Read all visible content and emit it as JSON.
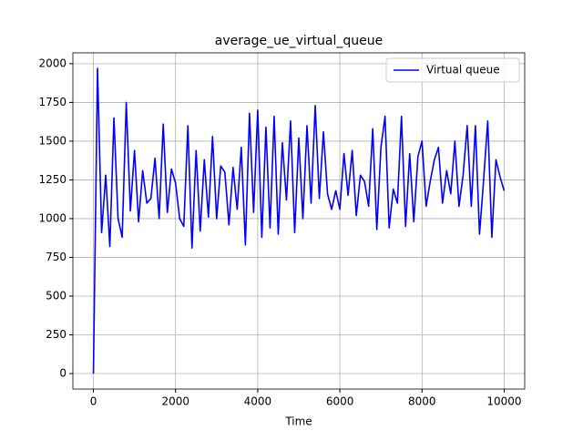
{
  "chart_data": {
    "type": "line",
    "title": "average_ue_virtual_queue",
    "xlabel": "Time",
    "x": [
      0,
      100,
      200,
      300,
      400,
      500,
      600,
      700,
      800,
      900,
      1000,
      1100,
      1200,
      1300,
      1400,
      1500,
      1600,
      1700,
      1800,
      1900,
      2000,
      2100,
      2200,
      2300,
      2400,
      2500,
      2600,
      2700,
      2800,
      2900,
      3000,
      3100,
      3200,
      3300,
      3400,
      3500,
      3600,
      3700,
      3800,
      3900,
      4000,
      4100,
      4200,
      4300,
      4400,
      4500,
      4600,
      4700,
      4800,
      4900,
      5000,
      5100,
      5200,
      5300,
      5400,
      5500,
      5600,
      5700,
      5800,
      5900,
      6000,
      6100,
      6200,
      6300,
      6400,
      6500,
      6600,
      6700,
      6800,
      6900,
      7000,
      7100,
      7200,
      7300,
      7400,
      7500,
      7600,
      7700,
      7800,
      7900,
      8000,
      8100,
      8200,
      8300,
      8400,
      8500,
      8600,
      8700,
      8800,
      8900,
      9000,
      9100,
      9200,
      9300,
      9400,
      9500,
      9600,
      9700,
      9800,
      9900,
      10000
    ],
    "series": [
      {
        "name": "Virtual queue",
        "color": "#0000ff",
        "values": [
          0,
          1970,
          910,
          1280,
          820,
          1650,
          1000,
          880,
          1750,
          1050,
          1440,
          980,
          1310,
          1100,
          1130,
          1390,
          1000,
          1610,
          1040,
          1320,
          1230,
          1000,
          950,
          1600,
          810,
          1440,
          920,
          1380,
          1010,
          1530,
          1000,
          1340,
          1300,
          960,
          1330,
          1060,
          1460,
          830,
          1680,
          1040,
          1700,
          880,
          1590,
          940,
          1660,
          900,
          1490,
          1120,
          1630,
          910,
          1520,
          1000,
          1600,
          1100,
          1730,
          1130,
          1560,
          1160,
          1060,
          1180,
          1060,
          1420,
          1150,
          1440,
          1020,
          1280,
          1240,
          1080,
          1580,
          930,
          1460,
          1660,
          940,
          1190,
          1100,
          1660,
          950,
          1420,
          980,
          1400,
          1500,
          1080,
          1240,
          1380,
          1460,
          1100,
          1310,
          1160,
          1500,
          1080,
          1280,
          1600,
          1080,
          1600,
          900,
          1250,
          1630,
          880,
          1380,
          1270,
          1180
        ]
      }
    ],
    "xlim": [
      -500,
      10500
    ],
    "ylim": [
      -100,
      2070
    ],
    "xticks": [
      0,
      2000,
      4000,
      6000,
      8000,
      10000
    ],
    "yticks": [
      0,
      250,
      500,
      750,
      1000,
      1250,
      1500,
      1750,
      2000
    ],
    "grid": true,
    "legend": "upper right"
  }
}
